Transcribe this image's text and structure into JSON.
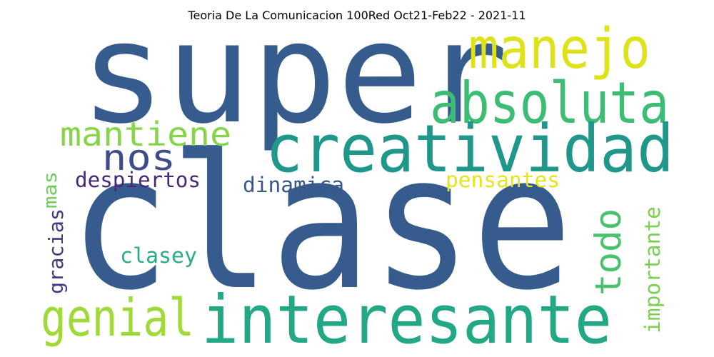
{
  "title": "Teoria De La Comunicacion 100Red Oct21-Feb22 - 2021-11",
  "words": [
    {
      "text": "super",
      "color": "#365c8d"
    },
    {
      "text": "clase",
      "color": "#365c8d"
    },
    {
      "text": "manejo",
      "color": "#dde318"
    },
    {
      "text": "absoluta",
      "color": "#3dbc74"
    },
    {
      "text": "creatividad",
      "color": "#1f988b"
    },
    {
      "text": "mantiene",
      "color": "#86d549"
    },
    {
      "text": "nos",
      "color": "#3e4c8a"
    },
    {
      "text": "despiertos",
      "color": "#482878"
    },
    {
      "text": "dinamica",
      "color": "#38588c"
    },
    {
      "text": "pensantes",
      "color": "#e8e419"
    },
    {
      "text": "mas",
      "color": "#6ccd5a"
    },
    {
      "text": "gracias",
      "color": "#453882"
    },
    {
      "text": "clasey",
      "color": "#27ad81"
    },
    {
      "text": "todo",
      "color": "#4ac16d"
    },
    {
      "text": "importante",
      "color": "#7ad151"
    },
    {
      "text": "genial",
      "color": "#a0da39"
    },
    {
      "text": "interesante",
      "color": "#22a884"
    }
  ]
}
